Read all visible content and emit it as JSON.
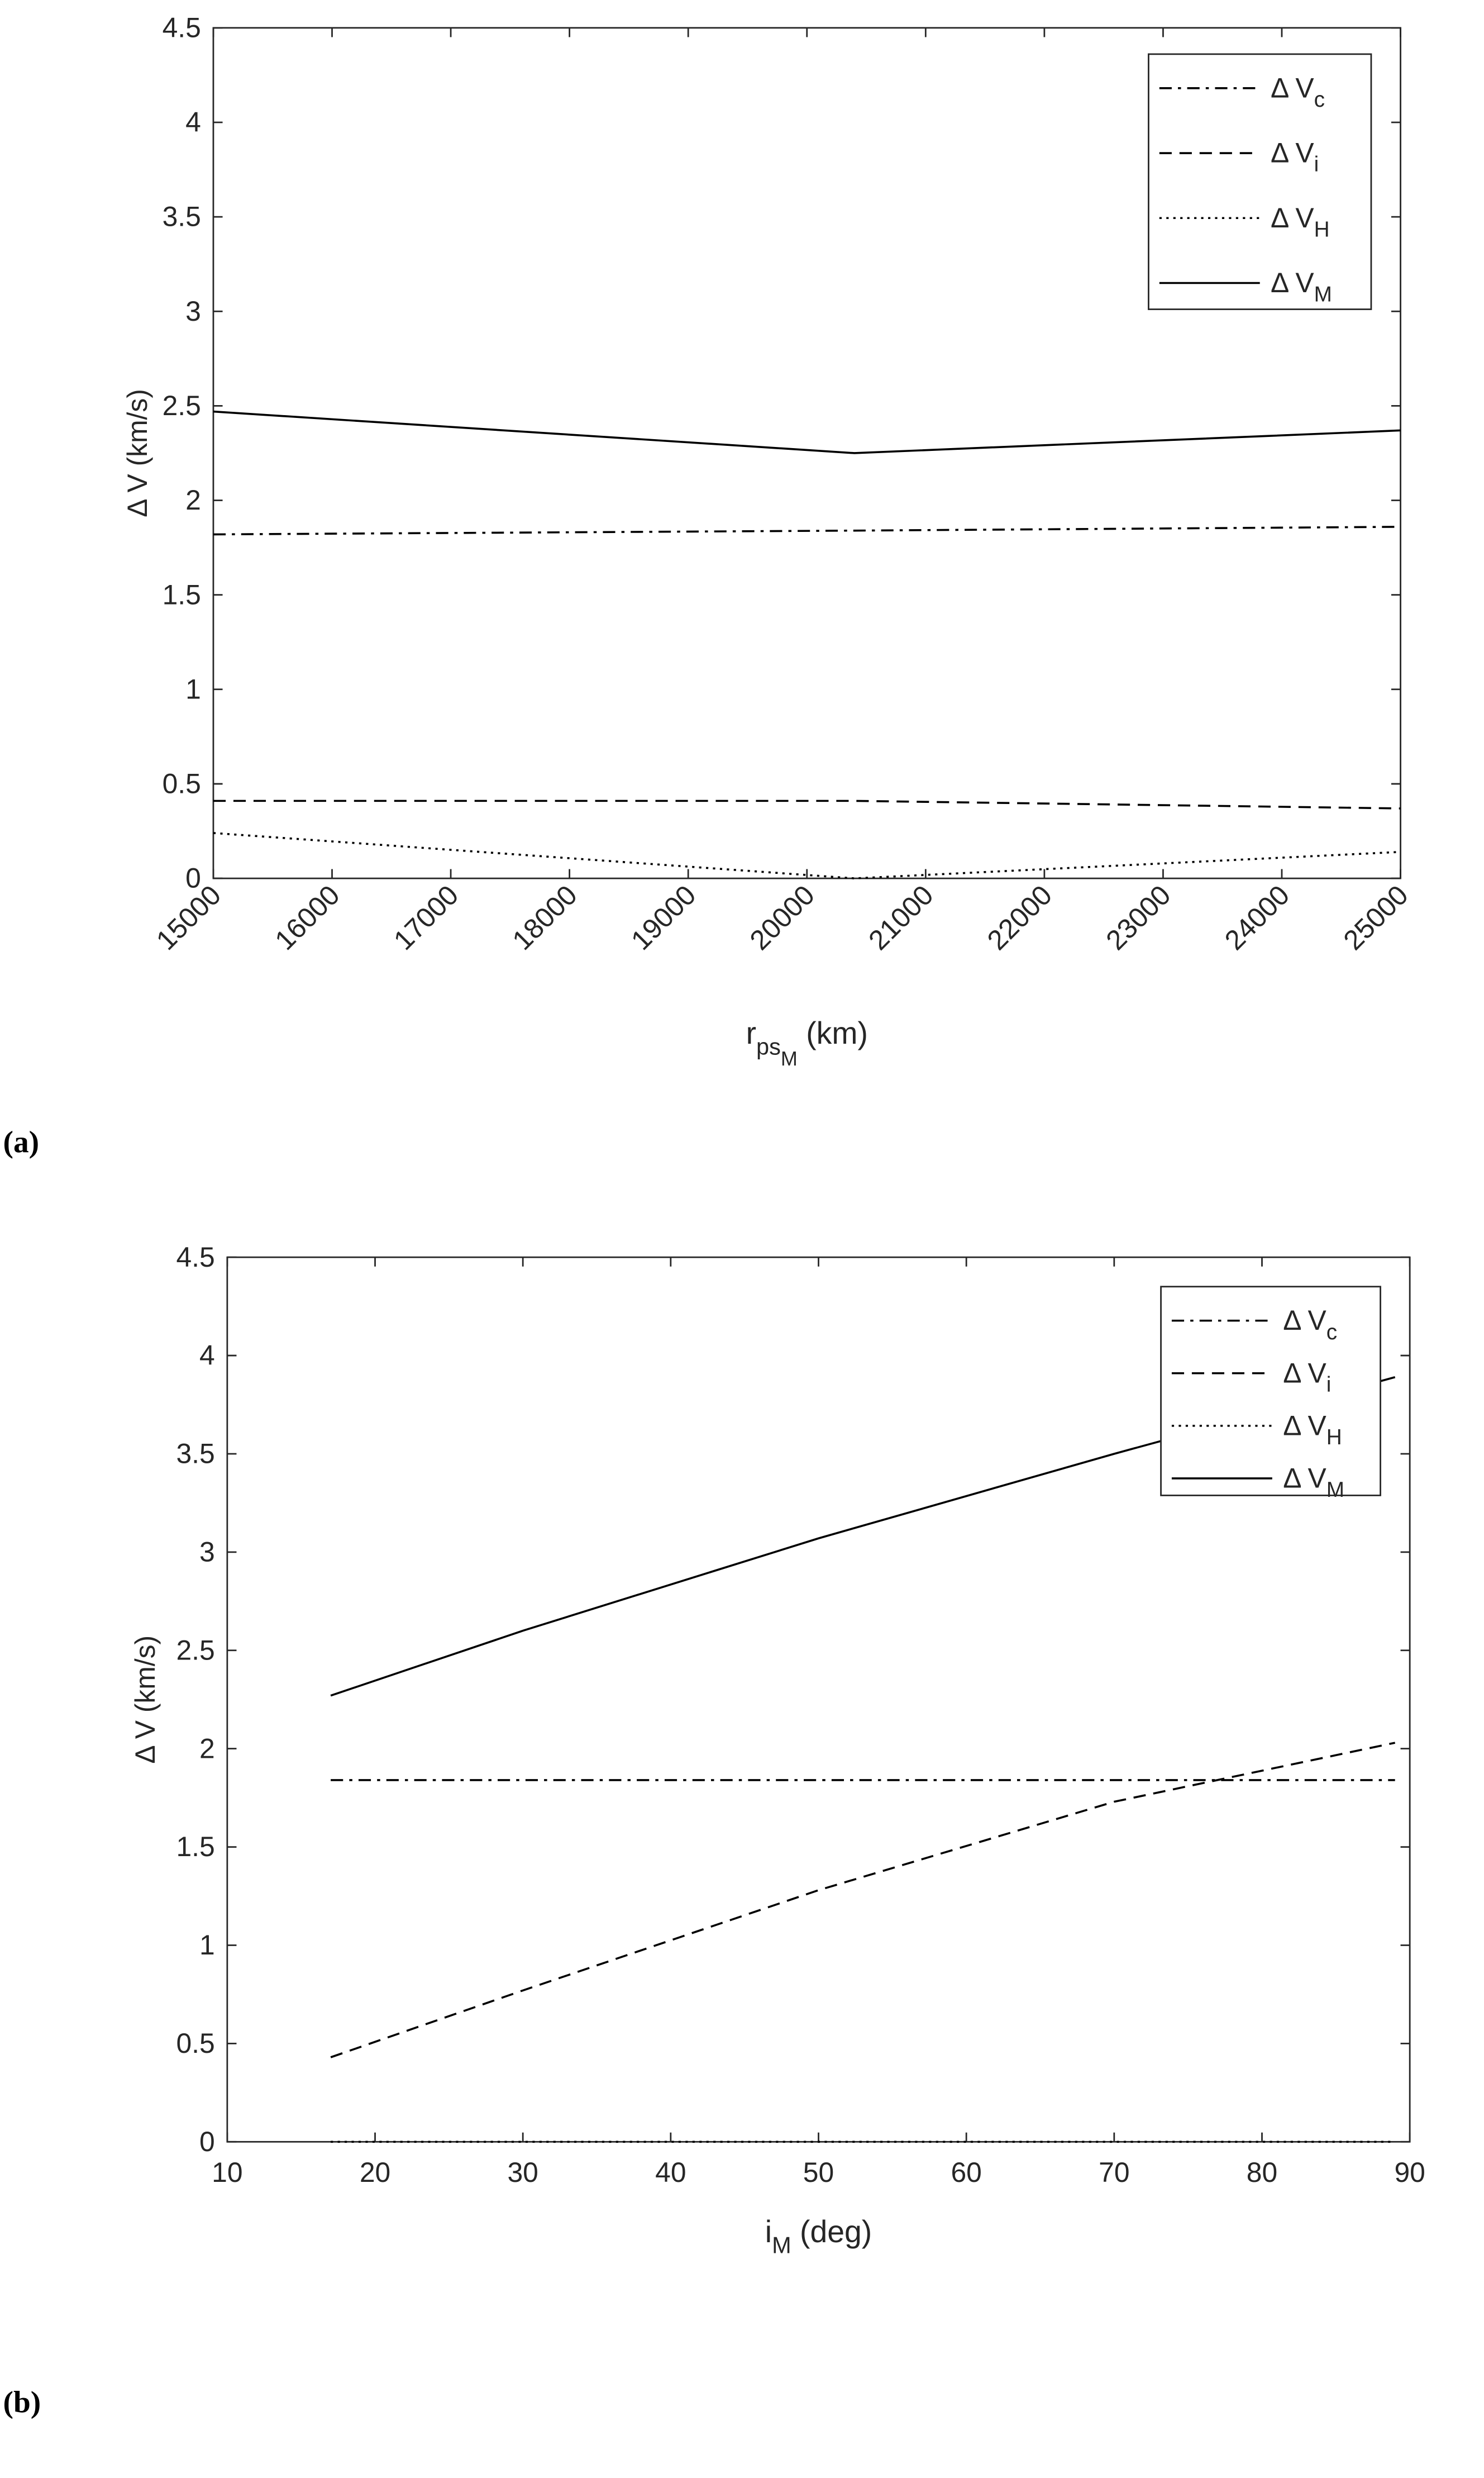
{
  "chart_data": [
    {
      "type": "line",
      "panel": "(a)",
      "ylabel": "Δ V (km/s)",
      "xlabel": [
        {
          "text": "r"
        },
        {
          "text": "ps",
          "sub": 1
        },
        {
          "text": "M",
          "sub": 2
        },
        {
          "text": " (km)"
        }
      ],
      "xlim": [
        15000,
        25000
      ],
      "xticks": [
        15000,
        16000,
        17000,
        18000,
        19000,
        20000,
        21000,
        22000,
        23000,
        24000,
        25000
      ],
      "xtick_rotation": 45,
      "ylim": [
        0,
        4.5
      ],
      "yticks": [
        0,
        0.5,
        1,
        1.5,
        2,
        2.5,
        3,
        3.5,
        4,
        4.5
      ],
      "legend": "upper right",
      "series": [
        {
          "name": "Δ V",
          "sub": "c",
          "color": "#000000",
          "dash": "dashdot",
          "x": [
            15000,
            20400,
            25000
          ],
          "values": [
            1.82,
            1.84,
            1.86
          ]
        },
        {
          "name": "Δ V",
          "sub": "i",
          "color": "#000000",
          "dash": "dashed",
          "x": [
            15000,
            20400,
            25000
          ],
          "values": [
            0.41,
            0.41,
            0.37
          ]
        },
        {
          "name": "Δ V",
          "sub": "H",
          "color": "#000000",
          "dash": "dotted",
          "x": [
            15000,
            20400,
            25000
          ],
          "values": [
            0.24,
            0,
            0.14
          ]
        },
        {
          "name": "Δ V",
          "sub": "M",
          "color": "#000000",
          "dash": "solid",
          "x": [
            15000,
            20400,
            25000
          ],
          "values": [
            2.47,
            2.25,
            2.37
          ]
        }
      ]
    },
    {
      "type": "line",
      "panel": "(b)",
      "ylabel": "Δ V (km/s)",
      "xlabel": [
        {
          "text": "i"
        },
        {
          "text": "M",
          "sub": 1
        },
        {
          "text": " (deg)"
        }
      ],
      "xlim": [
        10,
        90
      ],
      "xticks": [
        10,
        20,
        30,
        40,
        50,
        60,
        70,
        80,
        90
      ],
      "xtick_rotation": 0,
      "ylim": [
        0,
        4.5
      ],
      "yticks": [
        0,
        0.5,
        1,
        1.5,
        2,
        2.5,
        3,
        3.5,
        4,
        4.5
      ],
      "legend": "upper right",
      "series": [
        {
          "name": "Δ V",
          "sub": "c",
          "color": "#000000",
          "dash": "dashdot",
          "x": [
            17,
            50,
            89
          ],
          "values": [
            1.84,
            1.84,
            1.84
          ]
        },
        {
          "name": "Δ V",
          "sub": "i",
          "color": "#000000",
          "dash": "dashed",
          "x": [
            17,
            30,
            50,
            70,
            89
          ],
          "values": [
            0.43,
            0.77,
            1.28,
            1.73,
            2.03
          ]
        },
        {
          "name": "Δ V",
          "sub": "H",
          "color": "#000000",
          "dash": "dotted",
          "x": [
            17,
            50,
            89
          ],
          "values": [
            0,
            0,
            0
          ]
        },
        {
          "name": "Δ V",
          "sub": "M",
          "color": "#000000",
          "dash": "solid",
          "x": [
            17,
            30,
            50,
            70,
            89
          ],
          "values": [
            2.27,
            2.6,
            3.07,
            3.5,
            3.89
          ]
        }
      ]
    }
  ]
}
